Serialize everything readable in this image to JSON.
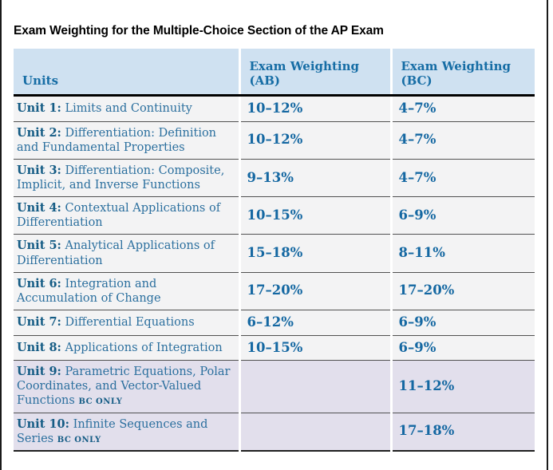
{
  "page": {
    "title": "Exam Weighting for the Multiple-Choice Section of the AP Exam"
  },
  "table": {
    "columns": [
      "Units",
      "Exam Weighting (AB)",
      "Exam Weighting (BC)"
    ],
    "bc_only_label": "BC ONLY",
    "rows": [
      {
        "unit": "Unit 1:",
        "name": "Limits and Continuity",
        "ab": "10–12%",
        "bc": "4–7%",
        "bc_only": false
      },
      {
        "unit": "Unit 2:",
        "name": "Differentiation: Definition and Fundamental Properties",
        "ab": "10–12%",
        "bc": "4–7%",
        "bc_only": false
      },
      {
        "unit": "Unit 3:",
        "name": "Differentiation: Composite, Implicit, and Inverse Functions",
        "ab": "9–13%",
        "bc": "4–7%",
        "bc_only": false
      },
      {
        "unit": "Unit 4:",
        "name": "Contextual Applications of Differentiation",
        "ab": "10–15%",
        "bc": "6–9%",
        "bc_only": false
      },
      {
        "unit": "Unit 5:",
        "name": "Analytical Applications of Differentiation",
        "ab": "15–18%",
        "bc": "8–11%",
        "bc_only": false
      },
      {
        "unit": "Unit 6:",
        "name": "Integration and Accumulation of Change",
        "ab": "17–20%",
        "bc": "17–20%",
        "bc_only": false
      },
      {
        "unit": "Unit 7:",
        "name": "Differential Equations",
        "ab": "6–12%",
        "bc": "6–9%",
        "bc_only": false
      },
      {
        "unit": "Unit 8:",
        "name": "Applications of Integration",
        "ab": "10–15%",
        "bc": "6–9%",
        "bc_only": false
      },
      {
        "unit": "Unit 9:",
        "name": "Parametric Equations, Polar Coordinates, and Vector-Valued Functions",
        "ab": "",
        "bc": "11–12%",
        "bc_only": true
      },
      {
        "unit": "Unit 10:",
        "name": "Infinite Sequences and Series",
        "ab": "",
        "bc": "17–18%",
        "bc_only": true
      }
    ]
  },
  "colors": {
    "header_bg": "#cfe1f1",
    "header_text": "#166da5",
    "row_bg": "#f3f3f4",
    "bc_row_bg": "#e2dfec",
    "unit_prefix": "#155c85",
    "unit_text": "#2b6f9e",
    "percent_text": "#1568a2",
    "separator": "#515151",
    "heavy_rule": "#000000",
    "bottom_rule": "#1f1f1f",
    "page_border": "#1a1a1a",
    "title_text": "#000000"
  }
}
